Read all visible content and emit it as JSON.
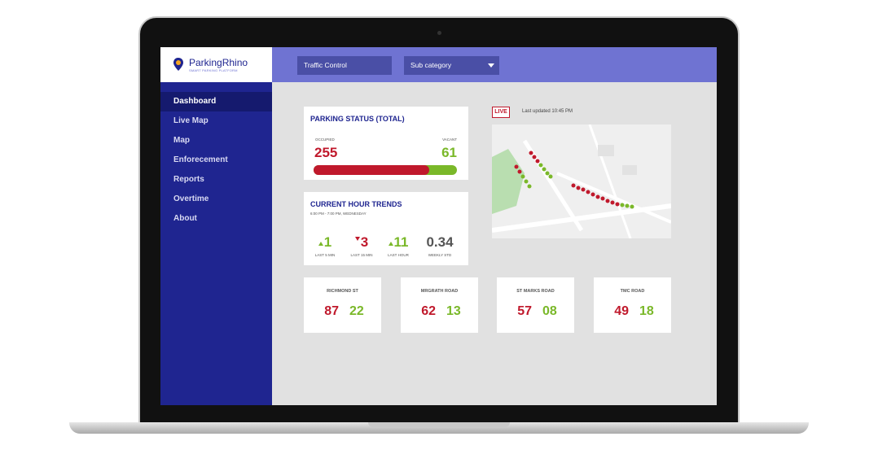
{
  "logo": {
    "name": "ParkingRhino",
    "tagline": "SMART PARKING PLATFORM"
  },
  "header": {
    "dropdowns": [
      "Traffic Control",
      "Sub category"
    ]
  },
  "nav": {
    "items": [
      "Dashboard",
      "Live Map",
      "Map",
      "Enforecement",
      "Reports",
      "Overtime",
      "About"
    ],
    "active": 0
  },
  "parking_status": {
    "title": "PARKING STATUS (TOTAL)",
    "occupied_label": "OCCUPIED",
    "occupied": 255,
    "vacant_label": "VACANT",
    "vacant": 61
  },
  "trends": {
    "title": "CURRENT HOUR TRENDS",
    "subtitle": "6:00 PM - 7:00 PM, WEDNESDAY",
    "items": [
      {
        "value": "1",
        "label": "LAST 5 MIN",
        "direction": "up"
      },
      {
        "value": "3",
        "label": "LAST 15 MIN",
        "direction": "down"
      },
      {
        "value": "11",
        "label": "LAST HOUR",
        "direction": "up"
      },
      {
        "value": "0.34",
        "label": "WEEKLY STD"
      }
    ]
  },
  "map": {
    "live": "LIVE",
    "updated": "Last updated 10:45 PM"
  },
  "roads": [
    {
      "name": "RICHMOND ST",
      "occupied": "87",
      "vacant": "22"
    },
    {
      "name": "MRGRATH ROAD",
      "occupied": "62",
      "vacant": "13"
    },
    {
      "name": "ST MARKS ROAD",
      "occupied": "57",
      "vacant": "08"
    },
    {
      "name": "TMC ROAD",
      "occupied": "49",
      "vacant": "18"
    }
  ]
}
